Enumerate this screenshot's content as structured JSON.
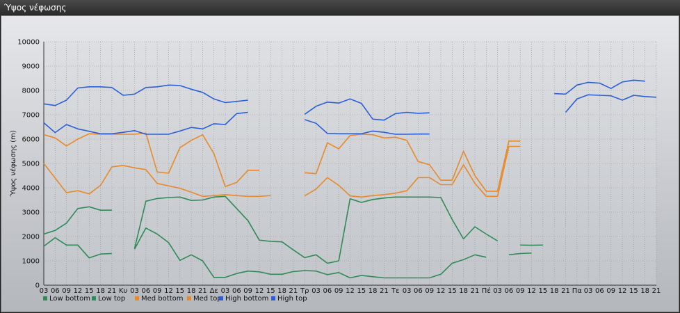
{
  "window": {
    "title": "Ύψος νέφωσης"
  },
  "chart_data": {
    "type": "line",
    "ylabel": "Ύψος νέφωσης (m)",
    "ylim": [
      0,
      10000
    ],
    "y_ticks": [
      0,
      1000,
      2000,
      3000,
      4000,
      5000,
      6000,
      7000,
      8000,
      9000,
      10000
    ],
    "grid": true,
    "legend_position": "bottom-left",
    "categories": [
      "03",
      "06",
      "09",
      "12",
      "15",
      "18",
      "21",
      "Κυ",
      "03",
      "06",
      "09",
      "12",
      "15",
      "18",
      "21",
      "Δε",
      "03",
      "06",
      "09",
      "12",
      "15",
      "18",
      "21",
      "Τρ",
      "03",
      "06",
      "09",
      "12",
      "15",
      "18",
      "21",
      "Τε",
      "03",
      "06",
      "09",
      "12",
      "15",
      "18",
      "21",
      "Πέ",
      "03",
      "06",
      "09",
      "12",
      "15",
      "18",
      "21",
      "Πα",
      "03",
      "06",
      "09",
      "12",
      "15",
      "18",
      "21"
    ],
    "series": [
      {
        "name": "Low bottom",
        "color": "#2e8b57",
        "values": [
          1600,
          1950,
          1650,
          1650,
          1120,
          1280,
          1300,
          null,
          1480,
          2350,
          2100,
          1750,
          1020,
          1250,
          1000,
          320,
          320,
          480,
          580,
          550,
          450,
          450,
          560,
          600,
          580,
          430,
          520,
          300,
          400,
          350,
          300,
          300,
          300,
          300,
          300,
          450,
          900,
          1050,
          1250,
          1150,
          null,
          1250,
          1300,
          1320,
          null,
          null,
          null,
          null,
          null,
          null,
          null,
          null,
          null,
          null,
          null
        ]
      },
      {
        "name": "Low top",
        "color": "#2e8b57",
        "values": [
          2100,
          2250,
          2550,
          3150,
          3220,
          3080,
          3080,
          null,
          1500,
          3450,
          3560,
          3600,
          3620,
          3480,
          3500,
          3620,
          3650,
          3150,
          2650,
          1850,
          1800,
          1780,
          1450,
          1130,
          1250,
          900,
          1000,
          3550,
          3400,
          3520,
          3580,
          3620,
          3620,
          3620,
          3620,
          3600,
          2700,
          1900,
          2400,
          2100,
          1820,
          null,
          1650,
          1640,
          1650,
          null,
          null,
          null,
          null,
          null,
          null,
          null,
          null,
          null,
          null
        ]
      },
      {
        "name": "Med bottom",
        "color": "#e8892a",
        "values": [
          5000,
          4400,
          3800,
          3880,
          3750,
          4100,
          4860,
          4920,
          4820,
          4750,
          4180,
          4080,
          3980,
          3820,
          3650,
          3680,
          3720,
          3680,
          3650,
          3650,
          3680,
          null,
          null,
          3670,
          3950,
          4420,
          4100,
          3670,
          3620,
          3680,
          3720,
          3780,
          3880,
          4420,
          4420,
          4130,
          4130,
          4950,
          4180,
          3650,
          3650,
          5700,
          5700,
          null,
          null,
          null,
          null,
          null,
          null,
          null,
          null,
          null,
          null,
          null,
          null
        ]
      },
      {
        "name": "Med top",
        "color": "#e8892a",
        "values": [
          6180,
          6050,
          5720,
          6000,
          6220,
          6200,
          6200,
          6200,
          6200,
          6250,
          4650,
          4600,
          5650,
          5950,
          6180,
          5400,
          4050,
          4220,
          4720,
          4720,
          null,
          null,
          null,
          4620,
          4580,
          5850,
          5600,
          6150,
          6200,
          6180,
          6050,
          6080,
          5950,
          5080,
          4950,
          4310,
          4310,
          5500,
          4500,
          3860,
          3860,
          5920,
          5920,
          null,
          null,
          null,
          null,
          null,
          null,
          null,
          null,
          null,
          null,
          null,
          null
        ]
      },
      {
        "name": "High bottom",
        "color": "#2b5fd9",
        "values": [
          6670,
          6270,
          6600,
          6420,
          6320,
          6220,
          6220,
          6280,
          6350,
          6200,
          6200,
          6200,
          6330,
          6480,
          6420,
          6630,
          6600,
          7050,
          7100,
          null,
          null,
          null,
          null,
          6800,
          6650,
          6230,
          6220,
          6220,
          6220,
          6330,
          6280,
          6200,
          6200,
          6210,
          6210,
          null,
          null,
          null,
          null,
          null,
          null,
          null,
          null,
          null,
          null,
          null,
          7100,
          7650,
          7820,
          7800,
          7780,
          7600,
          7800,
          7750,
          7720
        ]
      },
      {
        "name": "High top",
        "color": "#2b5fd9",
        "values": [
          7450,
          7380,
          7600,
          8100,
          8150,
          8150,
          8120,
          7800,
          7850,
          8120,
          8150,
          8220,
          8200,
          8050,
          7920,
          7650,
          7500,
          7550,
          7600,
          null,
          null,
          null,
          null,
          7020,
          7350,
          7520,
          7480,
          7650,
          7470,
          6820,
          6780,
          7050,
          7100,
          7060,
          7080,
          null,
          null,
          null,
          null,
          null,
          null,
          null,
          null,
          null,
          null,
          7870,
          7850,
          8220,
          8330,
          8300,
          8080,
          8350,
          8420,
          8380,
          null
        ]
      }
    ]
  }
}
